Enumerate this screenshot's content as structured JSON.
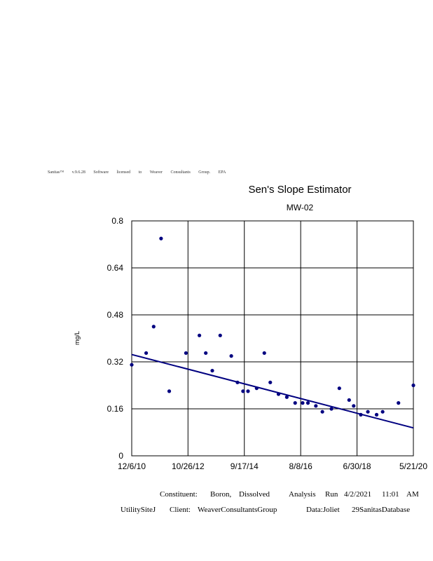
{
  "banner": {
    "words": [
      "Sanitas™",
      "v.9.6.28",
      "Software",
      "licensed",
      "to",
      "Weaver",
      "Consultants",
      "Group.",
      "EPA"
    ]
  },
  "chart_data": {
    "type": "scatter",
    "title": "Sen's Slope Estimator",
    "subtitle": "MW-02",
    "ylabel": "mg/L",
    "xlabel": "",
    "ylim": [
      0,
      0.8
    ],
    "y_ticks": [
      "0",
      "0.16",
      "0.32",
      "0.48",
      "0.64",
      "0.8"
    ],
    "y_tick_values": [
      0,
      0.16,
      0.32,
      0.48,
      0.64,
      0.8
    ],
    "x_ticks": [
      "12/6/10",
      "10/26/12",
      "9/17/14",
      "8/8/16",
      "6/30/18",
      "5/21/20"
    ],
    "x_tick_values": [
      "2010-12-06",
      "2012-10-26",
      "2014-09-17",
      "2016-08-08",
      "2018-06-30",
      "2020-05-21"
    ],
    "xlim": [
      "2010-12-06",
      "2020-05-21"
    ],
    "grid": true,
    "points": [
      {
        "x": "2010-12-06",
        "y": 0.31
      },
      {
        "x": "2011-06-01",
        "y": 0.35
      },
      {
        "x": "2011-09-01",
        "y": 0.44
      },
      {
        "x": "2011-12-01",
        "y": 0.74
      },
      {
        "x": "2012-03-10",
        "y": 0.22
      },
      {
        "x": "2012-10-01",
        "y": 0.35
      },
      {
        "x": "2013-03-15",
        "y": 0.41
      },
      {
        "x": "2013-06-01",
        "y": 0.35
      },
      {
        "x": "2013-08-20",
        "y": 0.29
      },
      {
        "x": "2013-11-25",
        "y": 0.41
      },
      {
        "x": "2014-04-10",
        "y": 0.34
      },
      {
        "x": "2014-06-25",
        "y": 0.25
      },
      {
        "x": "2014-09-01",
        "y": 0.22
      },
      {
        "x": "2014-11-01",
        "y": 0.22
      },
      {
        "x": "2015-02-15",
        "y": 0.23
      },
      {
        "x": "2015-05-20",
        "y": 0.35
      },
      {
        "x": "2015-08-01",
        "y": 0.25
      },
      {
        "x": "2015-11-10",
        "y": 0.21
      },
      {
        "x": "2016-02-20",
        "y": 0.2
      },
      {
        "x": "2016-06-01",
        "y": 0.18
      },
      {
        "x": "2016-09-01",
        "y": 0.18
      },
      {
        "x": "2016-11-05",
        "y": 0.18
      },
      {
        "x": "2017-02-10",
        "y": 0.17
      },
      {
        "x": "2017-05-01",
        "y": 0.15
      },
      {
        "x": "2017-08-20",
        "y": 0.16
      },
      {
        "x": "2017-11-25",
        "y": 0.23
      },
      {
        "x": "2018-03-25",
        "y": 0.19
      },
      {
        "x": "2018-05-20",
        "y": 0.17
      },
      {
        "x": "2018-08-15",
        "y": 0.14
      },
      {
        "x": "2018-11-10",
        "y": 0.15
      },
      {
        "x": "2019-02-25",
        "y": 0.14
      },
      {
        "x": "2019-05-10",
        "y": 0.15
      },
      {
        "x": "2019-11-20",
        "y": 0.18
      },
      {
        "x": "2020-05-21",
        "y": 0.24
      }
    ],
    "trend_line": {
      "start": {
        "x": "2010-12-06",
        "y": 0.345
      },
      "end": {
        "x": "2020-05-21",
        "y": 0.095
      }
    },
    "colors": {
      "points": "#000080",
      "trend": "#000080",
      "grid": "#000000"
    }
  },
  "footer": {
    "line1": {
      "constituent_label": "Constituent:",
      "constituent_value1": "Boron,",
      "constituent_value2": "Dissolved",
      "analysis_label1": "Analysis",
      "analysis_label2": "Run",
      "run_date": "4/2/2021",
      "run_time": "11:01",
      "run_ampm": "AM"
    },
    "line2": {
      "site": "UtilitySiteJ",
      "client_label": "Client:",
      "client_value": "WeaverConsultantsGroup",
      "data_label": "Data:Joliet",
      "database": "29SanitasDatabase"
    }
  }
}
